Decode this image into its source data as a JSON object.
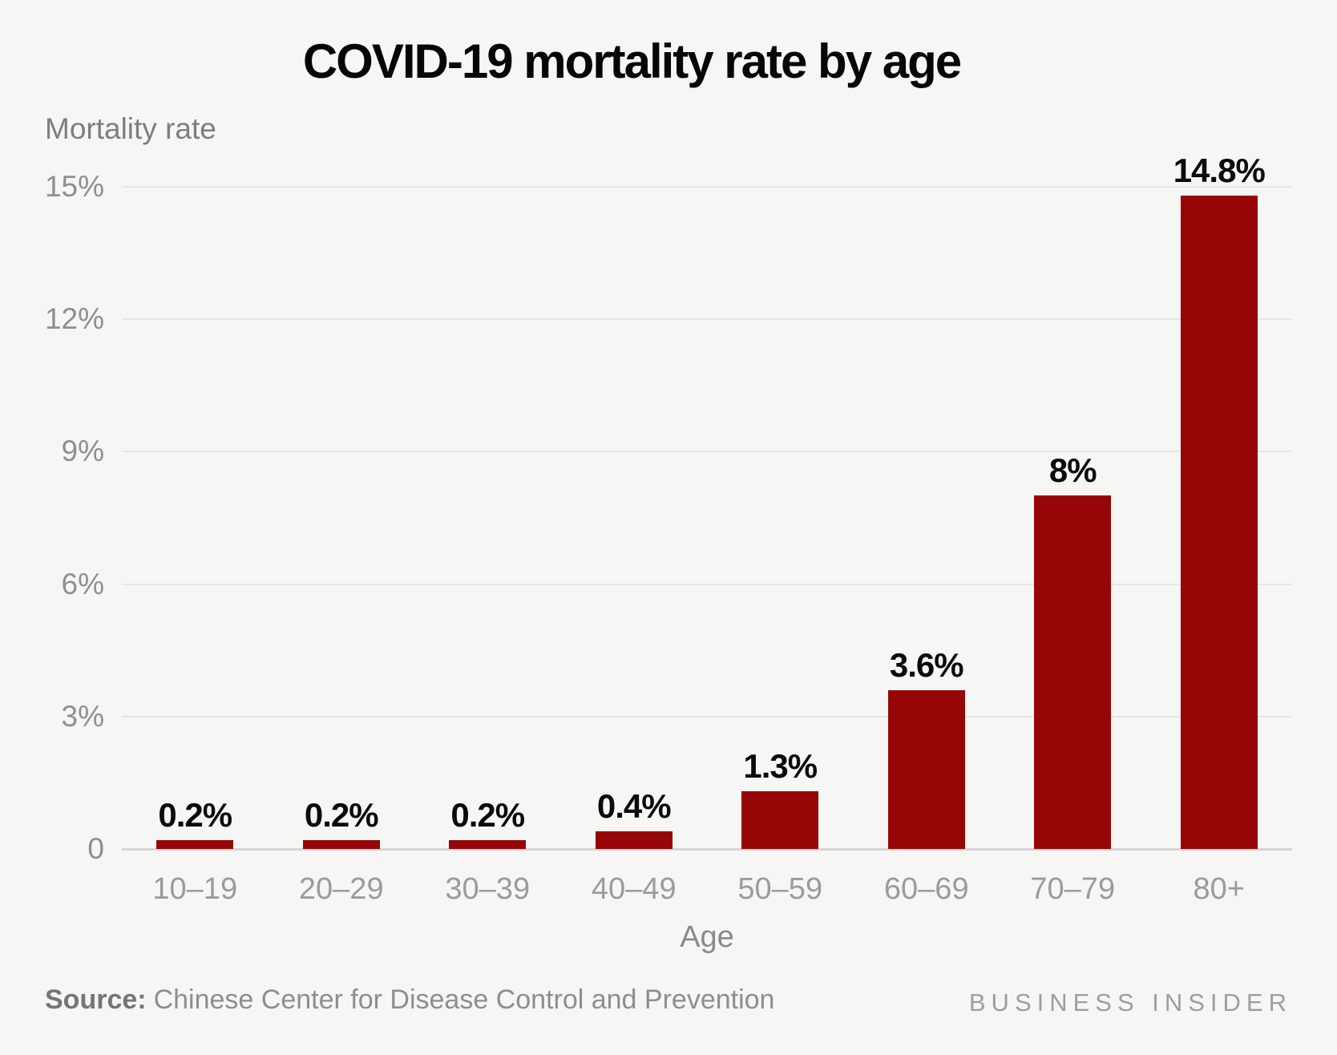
{
  "chart_data": {
    "type": "bar",
    "title": "COVID-19 mortality rate by age",
    "ylabel": "Mortality rate",
    "xlabel": "Age",
    "categories": [
      "10–19",
      "20–29",
      "30–39",
      "40–49",
      "50–59",
      "60–69",
      "70–79",
      "80+"
    ],
    "values": [
      0.2,
      0.2,
      0.2,
      0.4,
      1.3,
      3.6,
      8,
      14.8
    ],
    "value_labels": [
      "0.2%",
      "0.2%",
      "0.2%",
      "0.4%",
      "1.3%",
      "3.6%",
      "8%",
      "14.8%"
    ],
    "ylim": [
      0,
      15
    ],
    "yticks": [
      {
        "value": 0,
        "label": "0"
      },
      {
        "value": 3,
        "label": "3%"
      },
      {
        "value": 6,
        "label": "6%"
      },
      {
        "value": 9,
        "label": "9%"
      },
      {
        "value": 12,
        "label": "12%"
      },
      {
        "value": 15,
        "label": "15%"
      }
    ],
    "grid": "horizontal",
    "legend": "none",
    "bar_color": "#970607",
    "background_color": "#f6f6f5"
  },
  "footer": {
    "source_label": "Source:",
    "source_text": "Chinese Center for Disease Control and Prevention",
    "brand": "BUSINESS INSIDER"
  }
}
